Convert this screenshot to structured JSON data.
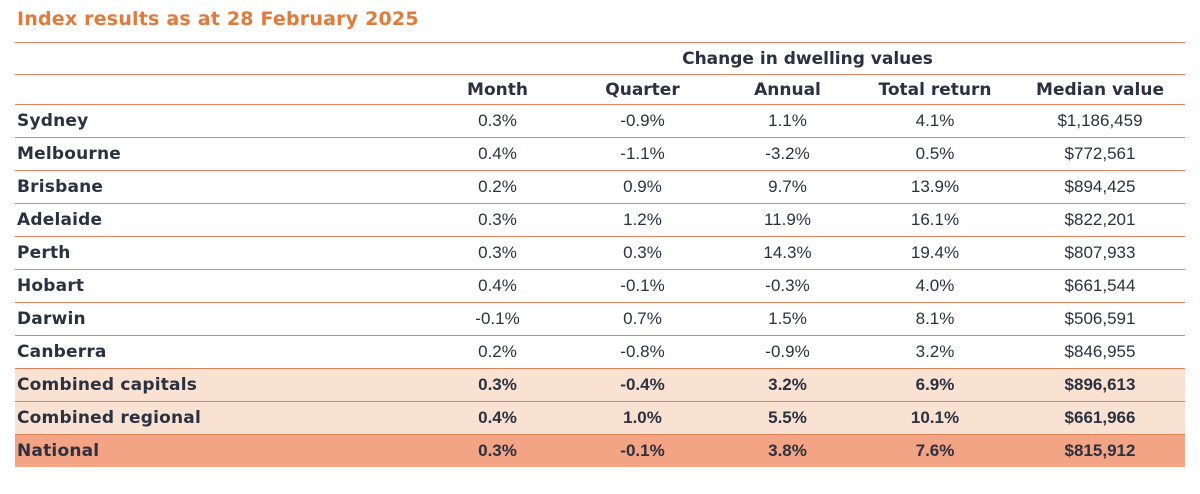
{
  "title": "Index results as at 28 February 2025",
  "chart_data": {
    "type": "table",
    "title": "Index results as at 28 February 2025",
    "group_header": "Change in dwelling values",
    "columns": [
      "Month",
      "Quarter",
      "Annual",
      "Total return",
      "Median value"
    ],
    "rows": [
      {
        "label": "Sydney",
        "highlight": "none",
        "values": [
          "0.3%",
          "-0.9%",
          "1.1%",
          "4.1%",
          "$1,186,459"
        ]
      },
      {
        "label": "Melbourne",
        "highlight": "none",
        "values": [
          "0.4%",
          "-1.1%",
          "-3.2%",
          "0.5%",
          "$772,561"
        ]
      },
      {
        "label": "Brisbane",
        "highlight": "none",
        "values": [
          "0.2%",
          "0.9%",
          "9.7%",
          "13.9%",
          "$894,425"
        ]
      },
      {
        "label": "Adelaide",
        "highlight": "none",
        "values": [
          "0.3%",
          "1.2%",
          "11.9%",
          "16.1%",
          "$822,201"
        ]
      },
      {
        "label": "Perth",
        "highlight": "none",
        "values": [
          "0.3%",
          "0.3%",
          "14.3%",
          "19.4%",
          "$807,933"
        ]
      },
      {
        "label": "Hobart",
        "highlight": "none",
        "values": [
          "0.4%",
          "-0.1%",
          "-0.3%",
          "4.0%",
          "$661,544"
        ]
      },
      {
        "label": "Darwin",
        "highlight": "none",
        "values": [
          "-0.1%",
          "0.7%",
          "1.5%",
          "8.1%",
          "$506,591"
        ]
      },
      {
        "label": "Canberra",
        "highlight": "none",
        "values": [
          "0.2%",
          "-0.8%",
          "-0.9%",
          "3.2%",
          "$846,955"
        ]
      },
      {
        "label": "Combined capitals",
        "highlight": "light",
        "values": [
          "0.3%",
          "-0.4%",
          "3.2%",
          "6.9%",
          "$896,613"
        ]
      },
      {
        "label": "Combined regional",
        "highlight": "light",
        "values": [
          "0.4%",
          "1.0%",
          "5.5%",
          "10.1%",
          "$661,966"
        ]
      },
      {
        "label": "National",
        "highlight": "strong",
        "values": [
          "0.3%",
          "-0.1%",
          "3.8%",
          "7.6%",
          "$815,912"
        ]
      }
    ],
    "colors": {
      "accent_orange": "#e5793a",
      "rule_orange": "#df8159",
      "text_dark": "#2a3140",
      "row_light_peach": "#f9e2d2",
      "row_strong_salmon": "#f2a484",
      "page_bg": "#ffffff"
    },
    "layout_hints": {
      "grid": "horizontal rules only",
      "group_header_span": "all five data columns",
      "label_column_align": "left",
      "data_columns_align": "center"
    }
  }
}
